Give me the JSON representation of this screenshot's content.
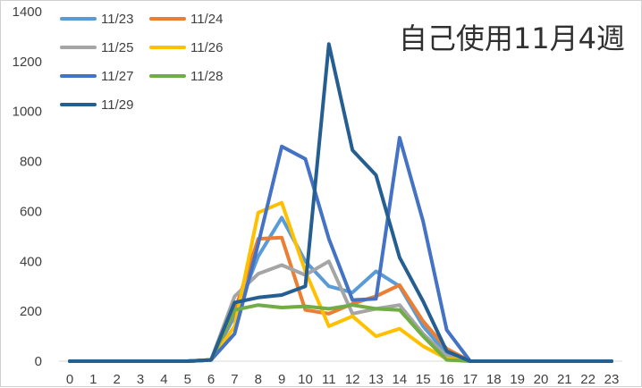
{
  "chart_data": {
    "type": "line",
    "title": "自己使用11月4週",
    "xlabel": "",
    "ylabel": "",
    "x": [
      0,
      1,
      2,
      3,
      4,
      5,
      6,
      7,
      8,
      9,
      10,
      11,
      12,
      13,
      14,
      15,
      16,
      17,
      18,
      19,
      20,
      21,
      22,
      23
    ],
    "ylim": [
      0,
      1400
    ],
    "yticks": [
      0,
      200,
      400,
      600,
      800,
      1000,
      1200,
      1400
    ],
    "grid": false,
    "legend_position": "top-left",
    "series": [
      {
        "name": "11/23",
        "color": "#5B9BD5",
        "values": [
          0,
          0,
          0,
          0,
          0,
          0,
          5,
          180,
          420,
          575,
          400,
          300,
          275,
          360,
          300,
          140,
          30,
          0,
          0,
          0,
          0,
          0,
          0,
          0
        ]
      },
      {
        "name": "11/24",
        "color": "#ED7D31",
        "values": [
          0,
          0,
          0,
          0,
          0,
          0,
          5,
          200,
          490,
          495,
          205,
          190,
          230,
          260,
          305,
          160,
          50,
          0,
          0,
          0,
          0,
          0,
          0,
          0
        ]
      },
      {
        "name": "11/25",
        "color": "#A5A5A5",
        "values": [
          0,
          0,
          0,
          0,
          0,
          0,
          5,
          260,
          350,
          385,
          345,
          400,
          190,
          210,
          225,
          110,
          20,
          0,
          0,
          0,
          0,
          0,
          0,
          0
        ]
      },
      {
        "name": "11/26",
        "color": "#FFC000",
        "values": [
          0,
          0,
          0,
          0,
          0,
          0,
          5,
          140,
          595,
          635,
          360,
          140,
          180,
          100,
          130,
          60,
          10,
          0,
          0,
          0,
          0,
          0,
          0,
          0
        ]
      },
      {
        "name": "11/27",
        "color": "#4472C4",
        "values": [
          0,
          0,
          0,
          0,
          0,
          0,
          5,
          110,
          470,
          860,
          810,
          490,
          245,
          250,
          895,
          560,
          125,
          0,
          0,
          0,
          0,
          0,
          0,
          0
        ]
      },
      {
        "name": "11/28",
        "color": "#70AD47",
        "values": [
          0,
          0,
          0,
          0,
          0,
          0,
          5,
          205,
          225,
          215,
          220,
          210,
          225,
          210,
          205,
          100,
          5,
          0,
          0,
          0,
          0,
          0,
          0,
          0
        ]
      },
      {
        "name": "11/29",
        "color": "#255E91",
        "values": [
          0,
          0,
          0,
          0,
          0,
          0,
          5,
          235,
          255,
          265,
          300,
          1270,
          845,
          745,
          415,
          240,
          40,
          0,
          0,
          0,
          0,
          0,
          0,
          0
        ]
      }
    ]
  }
}
